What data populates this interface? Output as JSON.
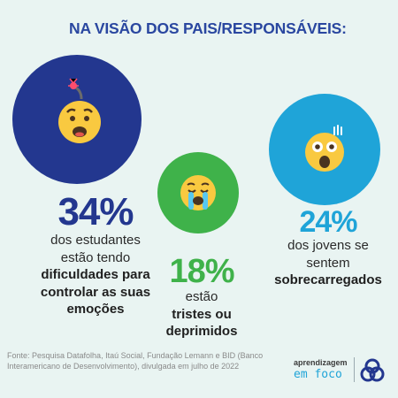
{
  "title": "NA VISÃO DOS PAIS/RESPONSÁVEIS:",
  "stats": [
    {
      "percent": "34%",
      "lines": [
        "dos estudantes",
        "estão tendo"
      ],
      "bold_lines": [
        "dificuldades para",
        "controlar as suas",
        "emoções"
      ],
      "color": "#23378f",
      "emoji": "worried-bomb-face-icon"
    },
    {
      "percent": "18%",
      "lines": [
        "estão"
      ],
      "bold_lines": [
        "tristes ou",
        "deprimidos"
      ],
      "color": "#3fb24a",
      "emoji": "crying-face-icon"
    },
    {
      "percent": "24%",
      "lines": [
        "dos jovens se",
        "sentem"
      ],
      "bold_lines": [
        "sobrecarregados"
      ],
      "color": "#1fa4d8",
      "emoji": "shocked-face-icon"
    }
  ],
  "footer": {
    "source": "Fonte: Pesquisa Datafolha, Itaú Social, Fundação Lemann e BID (Banco Interamericano de Desenvolvimento), divulgada em julho de 2022"
  },
  "brand": {
    "top": "aprendizagem",
    "bottom": "em foco"
  }
}
